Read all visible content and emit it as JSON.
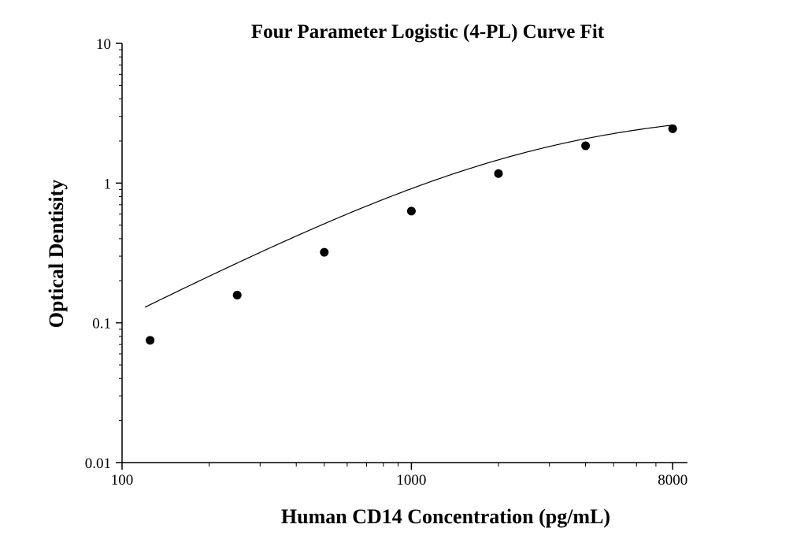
{
  "chart_data": {
    "type": "scatter",
    "title": "Four Parameter Logistic (4-PL) Curve Fit",
    "xlabel": "Human CD14 Concentration (pg/mL)",
    "ylabel": "Optical Dentisity",
    "x_scale": "log",
    "y_scale": "log",
    "xlim": [
      100,
      9000
    ],
    "ylim": [
      0.01,
      10
    ],
    "x_ticks": [
      {
        "value": 100,
        "label": "100"
      },
      {
        "value": 1000,
        "label": "1000"
      },
      {
        "value": 8000,
        "label": "8000"
      }
    ],
    "y_ticks": [
      {
        "value": 0.01,
        "label": "0.01"
      },
      {
        "value": 0.1,
        "label": "0.1"
      },
      {
        "value": 1,
        "label": "1"
      },
      {
        "value": 10,
        "label": "10"
      }
    ],
    "grid": false,
    "series": [
      {
        "x": [
          125,
          250,
          500,
          1000,
          2000,
          4000,
          8000
        ],
        "y": [
          0.075,
          0.158,
          0.32,
          0.63,
          1.17,
          1.85,
          2.45
        ],
        "marker_color": "#000000"
      }
    ],
    "fit_curve": {
      "model": "4PL",
      "A": 0.0,
      "B": 1.05,
      "C": 2600,
      "D": 3.4,
      "x_range": [
        120,
        8000
      ],
      "line_color": "#000000"
    }
  }
}
